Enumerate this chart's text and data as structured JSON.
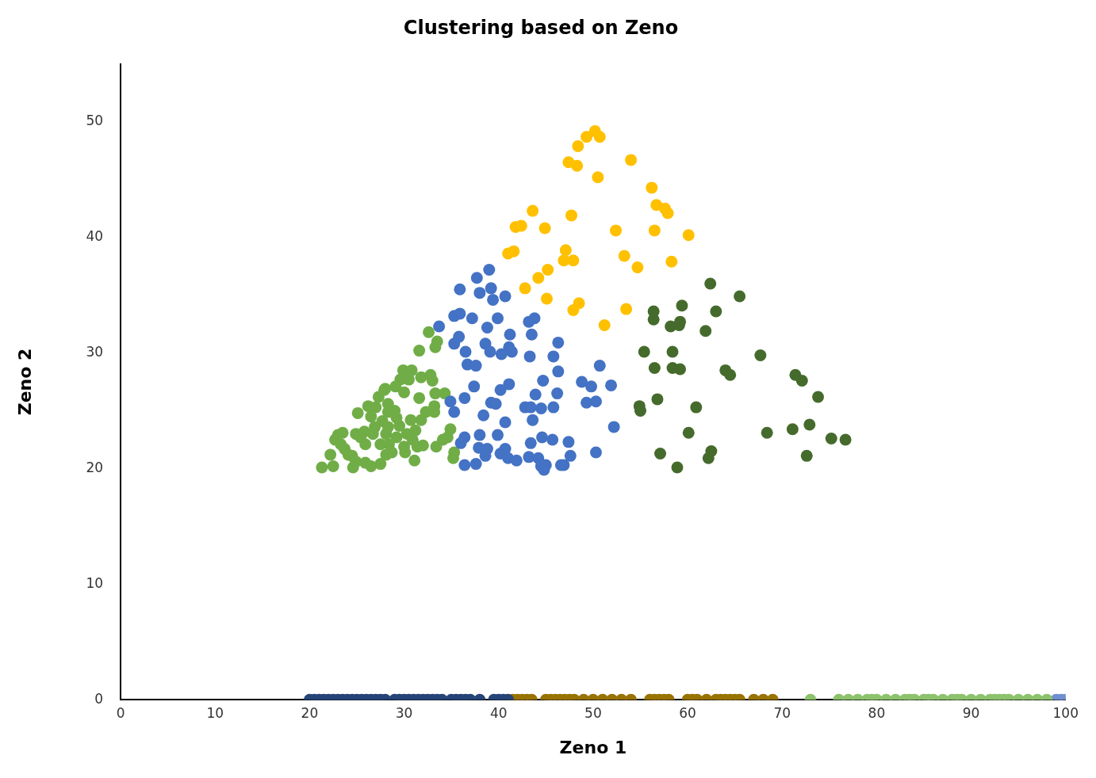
{
  "chart_data": {
    "type": "scatter",
    "title": "Clustering based on Zeno",
    "xlabel": "Zeno 1",
    "ylabel": "Zeno 2",
    "xlim": [
      0,
      100
    ],
    "xticks": [
      0,
      10,
      20,
      30,
      40,
      50,
      60,
      70,
      80,
      90,
      100
    ],
    "ylim": [
      0,
      55
    ],
    "yticks": [
      0,
      10,
      20,
      30,
      40,
      50
    ],
    "grid": false,
    "legend": false,
    "marker": "circle",
    "series": [
      {
        "color": "#ffc000",
        "x": [
          50.2,
          50.7,
          49.3,
          48.4,
          47.4,
          48.3,
          50.5,
          54.0,
          56.2,
          56.7,
          57.6,
          57.9,
          56.5,
          60.1,
          52.4,
          47.7,
          43.6,
          42.4,
          41.8,
          44.9,
          41.6,
          41.0,
          47.1,
          46.9,
          47.9,
          53.3,
          54.7,
          58.3,
          42.8,
          44.2,
          45.2,
          45.1,
          48.5,
          47.9,
          53.5,
          51.2
        ],
        "values": [
          49.2,
          48.7,
          48.7,
          47.9,
          46.5,
          46.2,
          45.2,
          46.7,
          44.3,
          42.8,
          42.5,
          42.1,
          40.6,
          40.2,
          40.6,
          41.9,
          42.3,
          41.0,
          40.9,
          40.8,
          38.8,
          38.6,
          38.9,
          38.0,
          38.0,
          38.4,
          37.4,
          37.9,
          35.6,
          36.5,
          37.2,
          34.7,
          34.3,
          33.7,
          33.8,
          32.4
        ]
      },
      {
        "color": "#456b2c",
        "x": [
          62.4,
          65.5,
          59.4,
          63.0,
          56.4,
          56.4,
          59.2,
          58.2,
          59.1,
          61.9,
          55.4,
          58.4,
          56.5,
          58.4,
          59.2,
          67.7,
          64.0,
          64.5,
          71.4,
          72.1,
          73.8,
          56.8,
          54.9,
          55.0,
          60.9,
          60.1,
          68.4,
          72.9,
          71.1,
          75.2,
          76.7,
          57.1,
          62.2,
          62.5,
          72.6,
          58.9
        ],
        "values": [
          36.0,
          34.9,
          34.1,
          33.6,
          33.6,
          32.9,
          32.7,
          32.3,
          32.4,
          31.9,
          30.1,
          30.1,
          28.7,
          28.7,
          28.6,
          29.8,
          28.5,
          28.1,
          28.1,
          27.6,
          26.2,
          26.0,
          25.4,
          25.0,
          25.3,
          23.1,
          23.1,
          23.8,
          23.4,
          22.6,
          22.5,
          21.3,
          20.9,
          21.5,
          21.1,
          20.1
        ]
      },
      {
        "color": "#4472c4",
        "x": [
          39.0,
          37.7,
          35.9,
          39.2,
          38.0,
          39.4,
          40.7,
          35.3,
          35.9,
          37.2,
          39.9,
          33.7,
          38.8,
          43.2,
          43.8,
          41.2,
          43.5,
          35.8,
          35.3,
          36.5,
          38.6,
          39.1,
          41.1,
          41.4,
          40.3,
          43.3,
          46.3,
          45.8,
          36.7,
          37.6,
          50.7,
          46.3,
          44.7,
          48.8,
          49.8,
          51.9,
          37.4,
          41.1,
          40.2,
          43.9,
          46.2,
          34.9,
          36.4,
          39.2,
          39.7,
          49.3,
          50.3,
          35.3,
          38.4,
          42.8,
          43.4,
          44.5,
          45.8,
          40.7,
          43.6,
          52.2,
          39.9,
          38.0,
          36.4,
          36.0,
          44.6,
          45.7,
          47.4,
          37.9,
          38.8,
          40.2,
          43.4,
          40.7,
          38.6,
          41.0,
          41.9,
          43.2,
          44.2,
          44.5,
          45.0,
          46.9,
          47.6,
          50.3,
          36.4,
          37.6,
          44.8,
          46.6
        ],
        "values": [
          37.2,
          36.5,
          35.5,
          35.6,
          35.2,
          34.6,
          34.9,
          33.2,
          33.4,
          33.0,
          33.0,
          32.3,
          32.2,
          32.7,
          33.0,
          31.6,
          31.6,
          31.4,
          30.8,
          30.1,
          30.8,
          30.1,
          30.5,
          30.1,
          29.9,
          29.7,
          30.9,
          29.7,
          29.0,
          28.9,
          28.9,
          28.4,
          27.6,
          27.5,
          27.1,
          27.2,
          27.1,
          27.3,
          26.8,
          26.4,
          26.5,
          25.8,
          26.1,
          25.7,
          25.6,
          25.7,
          25.8,
          24.9,
          24.6,
          25.3,
          25.3,
          25.2,
          25.3,
          24.0,
          24.2,
          23.6,
          22.9,
          22.9,
          22.7,
          22.2,
          22.7,
          22.5,
          22.3,
          21.8,
          21.7,
          21.3,
          22.2,
          21.7,
          21.1,
          20.9,
          20.7,
          21.0,
          20.9,
          20.2,
          20.3,
          20.3,
          21.1,
          21.4,
          20.3,
          20.4,
          19.9,
          20.3
        ]
      },
      {
        "color": "#70ad47",
        "x": [
          32.6,
          33.5,
          31.6,
          33.3,
          29.9,
          30.8,
          31.8,
          29.6,
          30.5,
          29.1,
          28.0,
          30.0,
          31.6,
          32.8,
          33.0,
          33.3,
          34.3,
          33.2,
          33.2,
          31.8,
          31.2,
          34.9,
          34.6,
          25.1,
          26.2,
          27.0,
          26.5,
          28.3,
          29.2,
          27.7,
          29.0,
          25.8,
          26.9,
          28.3,
          29.5,
          30.9,
          31.4,
          32.0,
          33.4,
          34.1,
          35.3,
          35.2,
          31.1,
          23.5,
          23.0,
          22.7,
          23.3,
          23.7,
          24.1,
          22.2,
          24.5,
          24.9,
          21.3,
          22.5,
          24.6,
          25.9,
          26.5,
          27.5,
          28.1,
          28.7,
          30.1,
          30.0,
          28.4,
          27.5,
          25.9,
          25.4,
          24.9,
          26.7,
          28.1,
          29.2,
          30.3,
          30.7,
          32.3,
          27.3,
          27.9,
          28.3
        ],
        "values": [
          31.8,
          31.0,
          30.2,
          30.5,
          28.5,
          28.5,
          27.9,
          27.7,
          27.7,
          27.1,
          26.9,
          26.6,
          26.1,
          28.1,
          27.6,
          26.5,
          26.5,
          25.4,
          24.9,
          24.2,
          23.3,
          23.4,
          22.7,
          24.8,
          25.4,
          25.3,
          24.5,
          24.9,
          24.4,
          24.1,
          25.0,
          23.2,
          23.6,
          23.6,
          23.7,
          22.5,
          21.9,
          22.0,
          21.9,
          22.5,
          21.4,
          20.9,
          20.7,
          23.1,
          22.9,
          22.5,
          22.1,
          21.7,
          21.2,
          21.2,
          21.1,
          20.6,
          20.1,
          20.2,
          20.1,
          20.5,
          20.2,
          20.4,
          21.2,
          21.4,
          21.4,
          21.9,
          22.1,
          22.1,
          22.1,
          22.7,
          23.0,
          23.0,
          23.0,
          22.7,
          23.0,
          24.2,
          24.9,
          26.2,
          26.8,
          25.6
        ]
      },
      {
        "color": "#264478",
        "x": [
          20,
          20.5,
          21,
          21.5,
          22,
          22.5,
          23,
          23.5,
          24,
          24.5,
          25,
          25.5,
          26,
          26.5,
          27,
          27.5,
          28,
          29,
          29.5,
          30,
          30.5,
          31,
          31.5,
          32,
          32.5,
          33,
          33.5,
          34,
          35,
          35.5,
          36,
          36.5,
          37,
          38,
          39.5,
          40,
          40.5,
          41
        ],
        "values": [
          0,
          0,
          0,
          0,
          0,
          0,
          0,
          0,
          0,
          0,
          0,
          0,
          0,
          0,
          0,
          0,
          0,
          0,
          0,
          0,
          0,
          0,
          0,
          0,
          0,
          0,
          0,
          0,
          0,
          0,
          0,
          0,
          0,
          0,
          0,
          0,
          0,
          0
        ]
      },
      {
        "color": "#997300",
        "x": [
          41.5,
          42,
          42.5,
          43,
          43.5,
          45,
          45.5,
          46,
          46.5,
          47,
          47.5,
          48,
          49,
          50,
          51,
          52,
          53,
          54,
          56,
          56.5,
          57,
          57.5,
          58,
          60,
          60.5,
          61,
          62,
          63,
          63.5,
          64,
          64.5,
          65,
          65.5,
          67,
          68,
          69
        ],
        "values": [
          0,
          0,
          0,
          0,
          0,
          0,
          0,
          0,
          0,
          0,
          0,
          0,
          0,
          0,
          0,
          0,
          0,
          0,
          0,
          0,
          0,
          0,
          0,
          0,
          0,
          0,
          0,
          0,
          0,
          0,
          0,
          0,
          0,
          0,
          0,
          0
        ]
      },
      {
        "color": "#8cc26c",
        "x": [
          73,
          76,
          77,
          78,
          79,
          79.5,
          80,
          81,
          82,
          83,
          83.5,
          84,
          85,
          85.5,
          86,
          87,
          88,
          88.5,
          89,
          90,
          91,
          92,
          92.5,
          93,
          93.5,
          94,
          95,
          96,
          97,
          98
        ],
        "values": [
          0,
          0,
          0,
          0,
          0,
          0,
          0,
          0,
          0,
          0,
          0,
          0,
          0,
          0,
          0,
          0,
          0,
          0,
          0,
          0,
          0,
          0,
          0,
          0,
          0,
          0,
          0,
          0,
          0,
          0
        ]
      },
      {
        "color": "#6f8fcf",
        "x": [
          99,
          99.5,
          100
        ],
        "values": [
          0,
          0,
          0
        ]
      }
    ]
  }
}
